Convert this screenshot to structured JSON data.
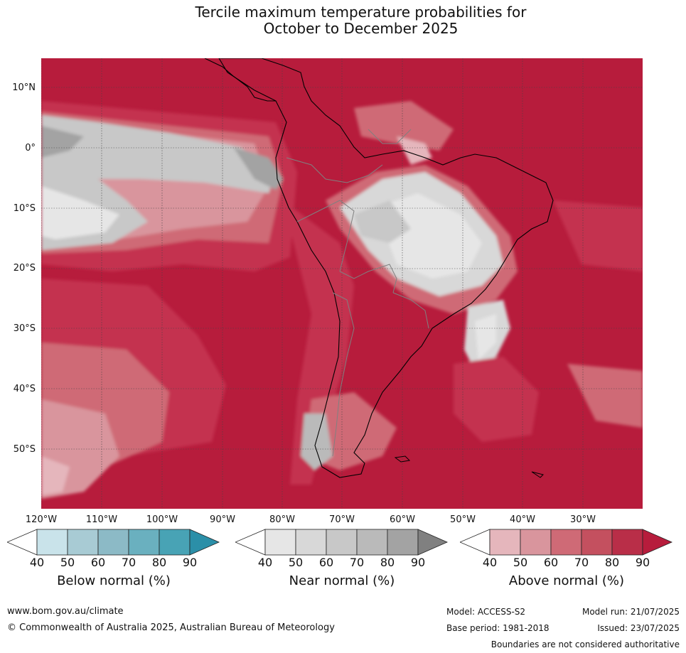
{
  "title": {
    "line1": "Tercile maximum temperature probabilities for",
    "line2": "October to December 2025"
  },
  "map": {
    "region": "South America",
    "lat_ticks": [
      "10°N",
      "0°",
      "10°S",
      "20°S",
      "30°S",
      "40°S",
      "50°S"
    ],
    "lon_ticks": [
      "120°W",
      "110°W",
      "100°W",
      "90°W",
      "80°W",
      "70°W",
      "60°W",
      "50°W",
      "40°W",
      "30°W"
    ],
    "dominant_category": "Above normal",
    "colors": {
      "above_90": "#b71c3c",
      "above_80": "#c43350",
      "above_70": "#cf6a76",
      "above_60": "#d9959d",
      "above_50": "#e5b6bc",
      "near_90": "#808080",
      "near_80": "#a3a3a3",
      "near_70": "#bababa",
      "near_60": "#c8c8c8",
      "near_50": "#d8d8d8",
      "near_40": "#e6e6e6",
      "coast": "#000000",
      "border": "#808080"
    }
  },
  "legends": [
    {
      "name": "Below normal (%)",
      "ticks": [
        "40",
        "50",
        "60",
        "70",
        "80",
        "90"
      ],
      "colors": [
        "#ffffff",
        "#c9e3ea",
        "#a8cbd4",
        "#8cbac6",
        "#6ab0bf",
        "#48a3b5",
        "#2b8fa8"
      ]
    },
    {
      "name": "Near normal (%)",
      "ticks": [
        "40",
        "50",
        "60",
        "70",
        "80",
        "90"
      ],
      "colors": [
        "#ffffff",
        "#e6e6e6",
        "#d8d8d8",
        "#c8c8c8",
        "#bababa",
        "#a3a3a3",
        "#808080"
      ]
    },
    {
      "name": "Above normal (%)",
      "ticks": [
        "40",
        "50",
        "60",
        "70",
        "80",
        "90"
      ],
      "colors": [
        "#ffffff",
        "#e5b6bc",
        "#d9959d",
        "#cf6a76",
        "#c4505f",
        "#b92e48",
        "#b71c3c"
      ]
    }
  ],
  "footer": {
    "website": "www.bom.gov.au/climate",
    "copyright": "© Commonwealth of Australia 2025, Australian Bureau of Meteorology",
    "model": "Model: ACCESS-S2",
    "base_period": "Base period: 1981-2018",
    "model_run": "Model run: 21/07/2025",
    "issued": "Issued: 23/07/2025",
    "disclaimer": "Boundaries are not considered authoritative"
  }
}
